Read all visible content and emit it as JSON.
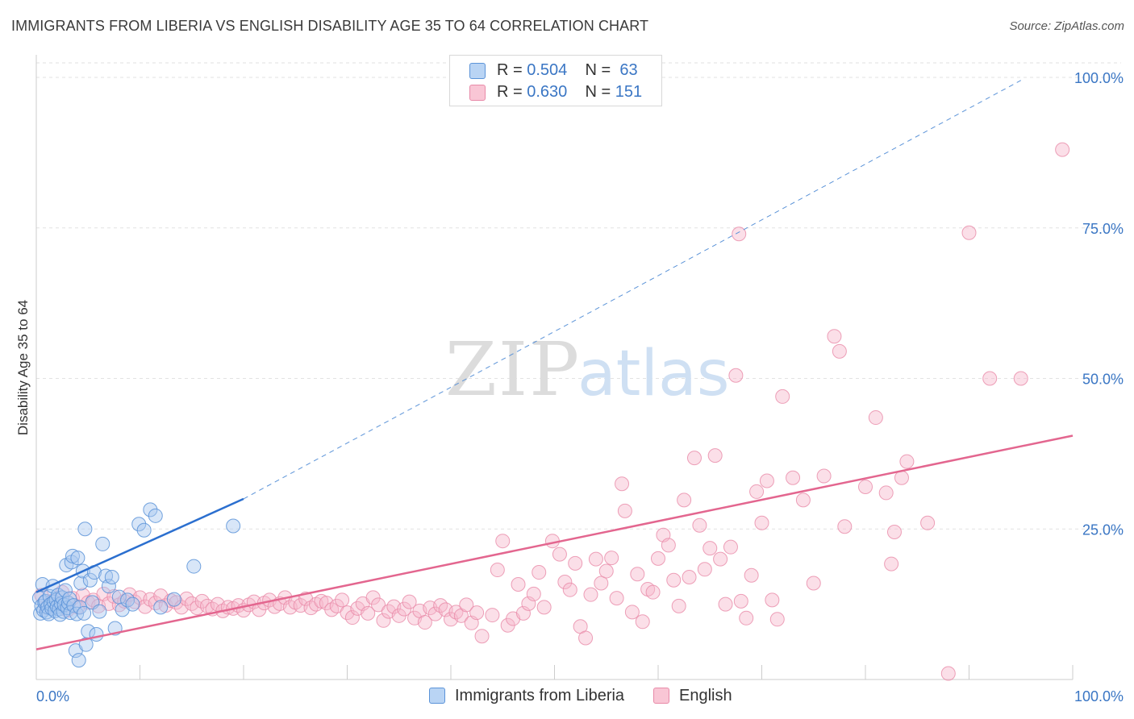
{
  "title": "IMMIGRANTS FROM LIBERIA VS ENGLISH DISABILITY AGE 35 TO 64 CORRELATION CHART",
  "source": "Source: ZipAtlas.com",
  "watermark": {
    "zip": "ZIP",
    "atlas": "atlas"
  },
  "legend": {
    "rows": [
      {
        "r_label": "R = ",
        "r_value": "0.504",
        "n_label": "N = ",
        "n_value": "63"
      },
      {
        "r_label": "R = ",
        "r_value": "0.630",
        "n_label": "N = ",
        "n_value": "151"
      }
    ]
  },
  "colors": {
    "blue_fill": "#a9c8ef",
    "blue_stroke": "#5b93d8",
    "blue_line": "#2b6fcf",
    "pink_fill": "#f6b8cb",
    "pink_stroke": "#e88aa8",
    "pink_line": "#e3668f",
    "axis_label": "#3a76c4",
    "grid": "#e2e2e2"
  },
  "chart_data": {
    "type": "scatter",
    "title": "IMMIGRANTS FROM LIBERIA VS ENGLISH DISABILITY AGE 35 TO 64 CORRELATION CHART",
    "xlabel": "",
    "ylabel": "Disability Age 35 to 64",
    "xlim": [
      0,
      100
    ],
    "ylim": [
      0,
      100
    ],
    "x_tick_labels": [
      "0.0%",
      "100.0%"
    ],
    "y_tick_labels": [
      "25.0%",
      "50.0%",
      "75.0%",
      "100.0%"
    ],
    "y_ticks": [
      25,
      50,
      75,
      100
    ],
    "grid": true,
    "legend_placement": "top-center",
    "series": [
      {
        "name": "Immigrants from Liberia",
        "color": "#a9c8ef",
        "trend": {
          "x": [
            0,
            20
          ],
          "y": [
            14.5,
            30.0
          ],
          "extended_to": [
            95,
            99.5
          ]
        },
        "points": [
          [
            0.3,
            13.5
          ],
          [
            0.4,
            11.0
          ],
          [
            0.5,
            12.2
          ],
          [
            0.6,
            15.8
          ],
          [
            0.7,
            11.5
          ],
          [
            0.8,
            12.8
          ],
          [
            0.9,
            13.0
          ],
          [
            1.0,
            11.2
          ],
          [
            1.1,
            12.0
          ],
          [
            1.2,
            10.9
          ],
          [
            1.3,
            13.8
          ],
          [
            1.4,
            12.5
          ],
          [
            1.5,
            11.8
          ],
          [
            1.6,
            15.5
          ],
          [
            1.7,
            12.9
          ],
          [
            1.8,
            11.4
          ],
          [
            1.9,
            13.2
          ],
          [
            2.0,
            12.1
          ],
          [
            2.1,
            14.0
          ],
          [
            2.2,
            11.7
          ],
          [
            2.3,
            10.8
          ],
          [
            2.4,
            12.6
          ],
          [
            2.5,
            13.6
          ],
          [
            2.6,
            11.3
          ],
          [
            2.7,
            12.4
          ],
          [
            2.8,
            14.8
          ],
          [
            2.9,
            19.0
          ],
          [
            3.0,
            11.9
          ],
          [
            3.1,
            12.7
          ],
          [
            3.2,
            13.4
          ],
          [
            3.3,
            11.1
          ],
          [
            3.4,
            19.5
          ],
          [
            3.5,
            20.5
          ],
          [
            3.6,
            12.3
          ],
          [
            3.8,
            4.8
          ],
          [
            3.9,
            10.9
          ],
          [
            4.0,
            20.2
          ],
          [
            4.1,
            3.2
          ],
          [
            4.2,
            12.0
          ],
          [
            4.3,
            16.0
          ],
          [
            4.5,
            18.0
          ],
          [
            4.6,
            11.0
          ],
          [
            4.7,
            25.0
          ],
          [
            4.8,
            5.8
          ],
          [
            5.0,
            8.0
          ],
          [
            5.2,
            16.5
          ],
          [
            5.4,
            12.8
          ],
          [
            5.6,
            17.8
          ],
          [
            5.8,
            7.5
          ],
          [
            6.1,
            11.3
          ],
          [
            6.4,
            22.5
          ],
          [
            6.7,
            17.2
          ],
          [
            7.0,
            15.5
          ],
          [
            7.3,
            17.0
          ],
          [
            7.6,
            8.5
          ],
          [
            8.0,
            13.7
          ],
          [
            8.3,
            11.6
          ],
          [
            8.8,
            13.2
          ],
          [
            9.3,
            12.5
          ],
          [
            9.9,
            25.8
          ],
          [
            10.4,
            24.8
          ],
          [
            11.0,
            28.2
          ],
          [
            11.5,
            27.2
          ],
          [
            12.0,
            12.0
          ],
          [
            13.3,
            13.3
          ],
          [
            15.2,
            18.8
          ],
          [
            19.0,
            25.5
          ]
        ]
      },
      {
        "name": "English",
        "color": "#f6b8cb",
        "trend": {
          "x": [
            0,
            100
          ],
          "y": [
            5.0,
            40.5
          ]
        },
        "points": [
          [
            0.5,
            14.0
          ],
          [
            1.0,
            12.0
          ],
          [
            1.5,
            13.0
          ],
          [
            2.0,
            12.5
          ],
          [
            2.5,
            14.5
          ],
          [
            3.0,
            11.5
          ],
          [
            3.5,
            13.5
          ],
          [
            4.0,
            12.0
          ],
          [
            4.5,
            14.0
          ],
          [
            5.0,
            12.8
          ],
          [
            5.5,
            13.2
          ],
          [
            6.0,
            12.2
          ],
          [
            6.5,
            14.2
          ],
          [
            7.0,
            12.6
          ],
          [
            7.5,
            13.8
          ],
          [
            8.0,
            12.4
          ],
          [
            8.5,
            13.0
          ],
          [
            9.0,
            14.1
          ],
          [
            9.5,
            12.9
          ],
          [
            10.0,
            13.6
          ],
          [
            10.5,
            12.1
          ],
          [
            11.0,
            13.3
          ],
          [
            11.5,
            12.7
          ],
          [
            12.0,
            13.9
          ],
          [
            12.5,
            12.3
          ],
          [
            13.0,
            13.1
          ],
          [
            13.5,
            12.8
          ],
          [
            14.0,
            12.0
          ],
          [
            14.5,
            13.4
          ],
          [
            15.0,
            12.6
          ],
          [
            15.5,
            11.9
          ],
          [
            16.0,
            13.0
          ],
          [
            16.5,
            12.2
          ],
          [
            17.0,
            11.7
          ],
          [
            17.5,
            12.5
          ],
          [
            18.0,
            11.4
          ],
          [
            18.5,
            12.0
          ],
          [
            19.0,
            11.8
          ],
          [
            19.5,
            12.3
          ],
          [
            20.0,
            11.5
          ],
          [
            20.5,
            12.4
          ],
          [
            21.0,
            12.9
          ],
          [
            21.5,
            11.6
          ],
          [
            22.0,
            12.7
          ],
          [
            22.5,
            13.2
          ],
          [
            23.0,
            12.1
          ],
          [
            23.5,
            12.6
          ],
          [
            24.0,
            13.6
          ],
          [
            24.5,
            12.0
          ],
          [
            25.0,
            12.8
          ],
          [
            25.5,
            12.3
          ],
          [
            26.0,
            13.4
          ],
          [
            26.5,
            11.9
          ],
          [
            27.0,
            12.5
          ],
          [
            27.5,
            13.0
          ],
          [
            28.0,
            12.7
          ],
          [
            28.5,
            11.6
          ],
          [
            29.0,
            12.2
          ],
          [
            29.5,
            13.2
          ],
          [
            30.0,
            11.1
          ],
          [
            30.5,
            10.3
          ],
          [
            31.0,
            11.8
          ],
          [
            31.5,
            12.6
          ],
          [
            32.0,
            11.0
          ],
          [
            32.5,
            13.6
          ],
          [
            33.0,
            12.4
          ],
          [
            33.5,
            9.8
          ],
          [
            34.0,
            11.3
          ],
          [
            34.5,
            12.1
          ],
          [
            35.0,
            10.6
          ],
          [
            35.5,
            11.7
          ],
          [
            36.0,
            12.9
          ],
          [
            36.5,
            10.2
          ],
          [
            37.0,
            11.4
          ],
          [
            37.5,
            9.5
          ],
          [
            38.0,
            11.9
          ],
          [
            38.5,
            10.9
          ],
          [
            39.0,
            12.3
          ],
          [
            39.5,
            11.6
          ],
          [
            40.0,
            10.0
          ],
          [
            40.5,
            11.2
          ],
          [
            41.0,
            10.6
          ],
          [
            41.5,
            12.4
          ],
          [
            42.0,
            9.4
          ],
          [
            42.5,
            11.1
          ],
          [
            43.0,
            7.2
          ],
          [
            44.0,
            10.7
          ],
          [
            44.5,
            18.2
          ],
          [
            45.0,
            23.0
          ],
          [
            45.5,
            9.0
          ],
          [
            46.0,
            10.1
          ],
          [
            46.5,
            15.8
          ],
          [
            47.0,
            11.0
          ],
          [
            47.5,
            12.6
          ],
          [
            48.0,
            14.2
          ],
          [
            48.5,
            17.8
          ],
          [
            49.0,
            12.0
          ],
          [
            49.8,
            23.0
          ],
          [
            50.5,
            20.8
          ],
          [
            51.0,
            16.2
          ],
          [
            51.5,
            14.9
          ],
          [
            52.0,
            19.3
          ],
          [
            52.5,
            8.8
          ],
          [
            53.0,
            6.9
          ],
          [
            53.5,
            14.1
          ],
          [
            54.0,
            20.0
          ],
          [
            54.5,
            16.0
          ],
          [
            55.0,
            18.0
          ],
          [
            55.5,
            20.2
          ],
          [
            56.0,
            13.5
          ],
          [
            56.5,
            32.5
          ],
          [
            56.8,
            28.0
          ],
          [
            57.5,
            11.2
          ],
          [
            58.0,
            17.5
          ],
          [
            58.5,
            9.6
          ],
          [
            59.0,
            15.0
          ],
          [
            59.5,
            14.5
          ],
          [
            60.0,
            20.1
          ],
          [
            60.5,
            24.0
          ],
          [
            61.0,
            22.3
          ],
          [
            61.5,
            16.5
          ],
          [
            62.0,
            12.2
          ],
          [
            62.5,
            29.8
          ],
          [
            63.0,
            17.0
          ],
          [
            63.5,
            36.8
          ],
          [
            64.0,
            25.6
          ],
          [
            64.5,
            18.3
          ],
          [
            65.0,
            21.8
          ],
          [
            65.5,
            37.2
          ],
          [
            66.0,
            20.0
          ],
          [
            66.5,
            12.5
          ],
          [
            67.0,
            22.0
          ],
          [
            67.8,
            74.0
          ],
          [
            68.0,
            13.0
          ],
          [
            68.5,
            10.2
          ],
          [
            69.0,
            17.3
          ],
          [
            69.5,
            31.2
          ],
          [
            70.0,
            26.0
          ],
          [
            70.5,
            33.0
          ],
          [
            71.0,
            13.2
          ],
          [
            71.5,
            10.0
          ],
          [
            72.0,
            47.0
          ],
          [
            73.0,
            33.5
          ],
          [
            74.0,
            29.8
          ],
          [
            75.0,
            16.0
          ],
          [
            76.0,
            33.8
          ],
          [
            77.0,
            57.0
          ],
          [
            77.5,
            54.5
          ],
          [
            78.0,
            25.4
          ],
          [
            80.0,
            32.0
          ],
          [
            81.0,
            43.5
          ],
          [
            82.0,
            31.0
          ],
          [
            82.5,
            19.2
          ],
          [
            84.0,
            36.2
          ],
          [
            86.0,
            26.0
          ],
          [
            88.0,
            1.0
          ],
          [
            90.0,
            74.2
          ],
          [
            92.0,
            50.0
          ],
          [
            95.0,
            50.0
          ],
          [
            99.0,
            88.0
          ],
          [
            83.5,
            33.5
          ],
          [
            67.5,
            50.5
          ],
          [
            82.8,
            24.5
          ]
        ]
      }
    ]
  },
  "bottom_legend": [
    {
      "label": "Immigrants from Liberia"
    },
    {
      "label": "English"
    }
  ]
}
